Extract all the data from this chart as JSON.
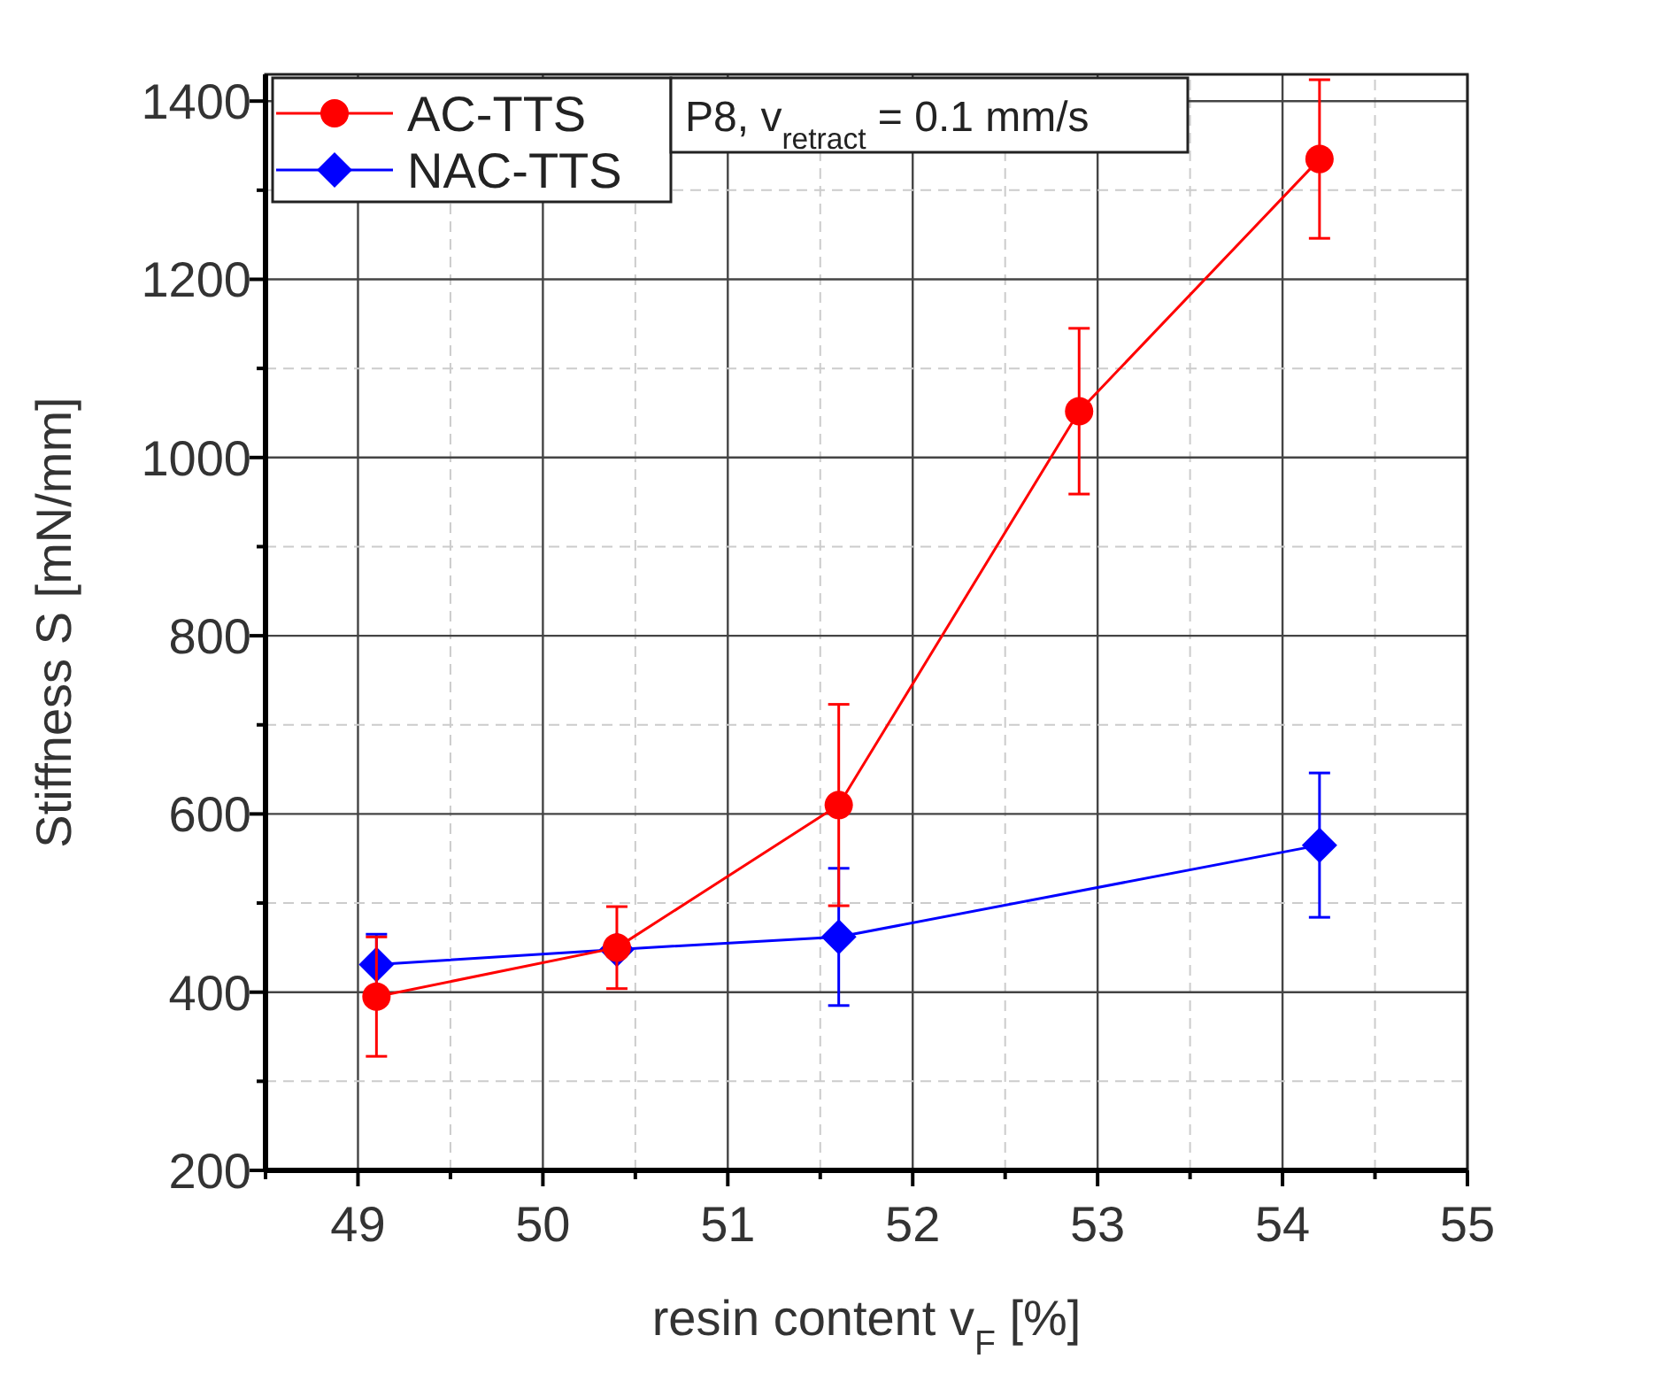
{
  "chart_data": {
    "type": "line",
    "xlabel": "resin content v$_{F}$ [%]",
    "ylabel": "Stiffness S [mN/mm]",
    "annotations": [
      "P8, v$_{retract}$ = 0.1 mm/s"
    ],
    "xlim": [
      48.5,
      55
    ],
    "ylim": [
      200,
      1430
    ],
    "xticks": [
      {
        "value": 48.5,
        "label": null
      },
      49,
      {
        "value": 49.5,
        "label": null
      },
      50,
      {
        "value": 50.5,
        "label": null
      },
      51,
      {
        "value": 51.5,
        "label": null
      },
      52,
      {
        "value": 52.5,
        "label": null
      },
      53,
      {
        "value": 53.5,
        "label": null
      },
      54,
      {
        "value": 54.5,
        "label": null
      },
      55
    ],
    "yticks": [
      200,
      {
        "value": 300,
        "label": null
      },
      400,
      {
        "value": 500,
        "label": null
      },
      600,
      {
        "value": 700,
        "label": null
      },
      800,
      {
        "value": 900,
        "label": null
      },
      1000,
      {
        "value": 1100,
        "label": null
      },
      1200,
      {
        "value": 1300,
        "label": null
      },
      1400
    ],
    "grid": true,
    "legend": "top left",
    "line_style": "solid",
    "series": [
      {
        "name": "AC-TTS",
        "color": "#ff0000",
        "marker": "circle",
        "x": [
          49.1,
          50.4,
          51.6,
          52.9,
          54.2
        ],
        "values": [
          395,
          450,
          610,
          1052,
          1335
        ],
        "errors": [
          67,
          46,
          113,
          93,
          89
        ]
      },
      {
        "name": "NAC-TTS",
        "color": "#0000ff",
        "marker": "diamond",
        "x": [
          49.1,
          50.4,
          51.6,
          54.2
        ],
        "values": [
          431,
          448,
          462,
          565
        ],
        "errors": [
          34,
          null,
          77,
          81
        ]
      }
    ]
  }
}
